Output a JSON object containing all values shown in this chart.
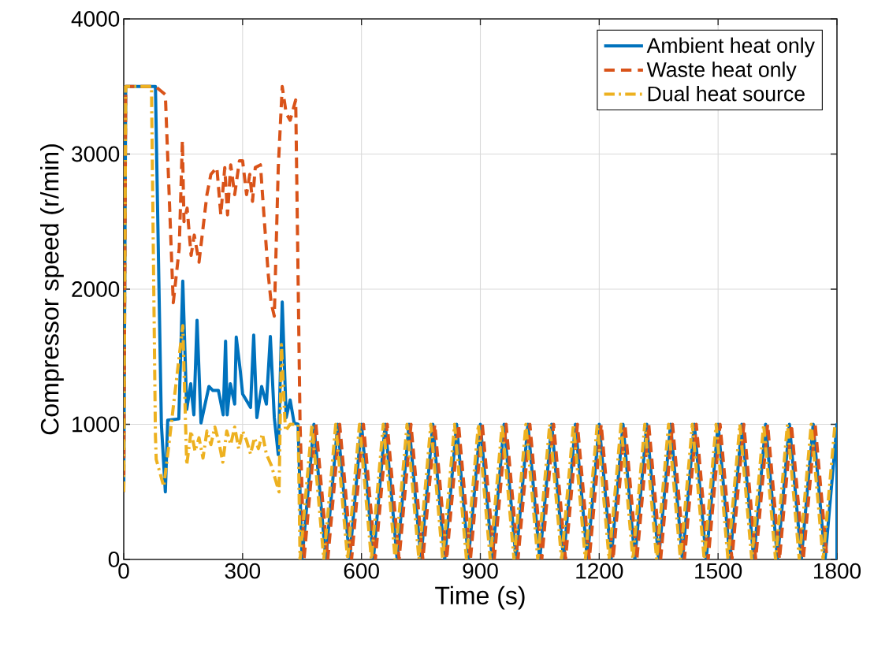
{
  "chart_data": {
    "type": "line",
    "xlabel": "Time (s)",
    "ylabel": "Compressor speed (r/min)",
    "xlim": [
      0,
      1800
    ],
    "xticks": [
      0,
      300,
      600,
      900,
      1200,
      1500,
      1800
    ],
    "ylim": [
      0,
      4000
    ],
    "yticks": [
      0,
      1000,
      2000,
      3000,
      4000
    ],
    "grid": true,
    "legend": "top right",
    "series": [
      {
        "name": "Ambient heat only",
        "color": "#0072bd",
        "line_style": "solid",
        "x": [
          0,
          5,
          80,
          95,
          105,
          111,
          139,
          149,
          159,
          169,
          177,
          185,
          195,
          215,
          225,
          239,
          251,
          257,
          261,
          269,
          280,
          284,
          294,
          300,
          320,
          328,
          336,
          348,
          360,
          370,
          380,
          390,
          400,
          410,
          420,
          430,
          440,
          450,
          480,
          510,
          540,
          570,
          600,
          630,
          660,
          690,
          720,
          750,
          780,
          810,
          840,
          870,
          900,
          930,
          960,
          990,
          1020,
          1050,
          1080,
          1110,
          1140,
          1170,
          1200,
          1230,
          1260,
          1290,
          1320,
          1350,
          1380,
          1410,
          1440,
          1470,
          1500,
          1530,
          1560,
          1590,
          1620,
          1650,
          1680,
          1710,
          1740,
          1770,
          1800,
          1800
        ],
        "values": [
          500,
          3500,
          3500,
          1000,
          500,
          1030,
          1040,
          2060,
          1110,
          1300,
          1070,
          1770,
          1010,
          1280,
          1250,
          1250,
          1070,
          1615,
          1070,
          1300,
          1150,
          1645,
          1400,
          1225,
          1125,
          1660,
          1050,
          1280,
          1150,
          1650,
          1050,
          775,
          1905,
          1050,
          1180,
          1010,
          1000,
          0,
          1000,
          0,
          1000,
          0,
          1000,
          0,
          1000,
          0,
          1000,
          0,
          1000,
          0,
          1000,
          0,
          1000,
          0,
          1000,
          0,
          1000,
          0,
          1000,
          0,
          1000,
          0,
          1000,
          0,
          1000,
          0,
          1000,
          0,
          1000,
          0,
          1000,
          0,
          1000,
          0,
          1000,
          0,
          1000,
          0,
          1000,
          0,
          1000,
          0,
          1000,
          0
        ]
      },
      {
        "name": "Waste heat only",
        "color": "#d95319",
        "line_style": "dashed",
        "x": [
          0,
          5,
          80,
          105,
          125,
          140,
          148,
          152,
          160,
          170,
          178,
          190,
          200,
          210,
          220,
          235,
          245,
          255,
          262,
          270,
          280,
          292,
          300,
          310,
          318,
          325,
          332,
          345,
          355,
          365,
          372,
          380,
          390,
          400,
          410,
          420,
          434,
          445,
          455,
          485,
          515,
          545,
          575,
          605,
          635,
          665,
          695,
          725,
          755,
          785,
          815,
          845,
          875,
          905,
          935,
          965,
          995,
          1025,
          1055,
          1085,
          1115,
          1145,
          1175,
          1205,
          1235,
          1265,
          1295,
          1325,
          1355,
          1385,
          1415,
          1445,
          1475,
          1505,
          1535,
          1565,
          1595,
          1625,
          1655,
          1685,
          1715,
          1745,
          1775
        ],
        "values": [
          500,
          3500,
          3500,
          3440,
          1900,
          2300,
          3100,
          2500,
          2600,
          2250,
          2400,
          2200,
          2450,
          2700,
          2850,
          2900,
          2550,
          2900,
          2550,
          2920,
          2700,
          2950,
          2950,
          2700,
          2850,
          2650,
          2900,
          2920,
          2500,
          2100,
          1900,
          1800,
          2900,
          3500,
          3300,
          3250,
          3400,
          1000,
          0,
          1000,
          0,
          1000,
          0,
          1000,
          0,
          1000,
          0,
          1000,
          0,
          1000,
          0,
          1000,
          0,
          1000,
          0,
          1000,
          0,
          1000,
          0,
          1000,
          0,
          1000,
          0,
          1000,
          0,
          1000,
          0,
          1000,
          0,
          1000,
          0,
          1000,
          0,
          1000,
          0,
          1000,
          0,
          1000,
          0,
          1000,
          0,
          1000,
          0
        ]
      },
      {
        "name": "Dual heat source",
        "color": "#edb120",
        "line_style": "dashdot",
        "x": [
          0,
          5,
          70,
          80,
          82,
          101,
          111,
          149,
          159,
          170,
          180,
          190,
          200,
          210,
          220,
          230,
          240,
          250,
          260,
          270,
          280,
          290,
          300,
          310,
          320,
          330,
          340,
          350,
          360,
          372,
          392,
          398,
          408,
          420,
          440,
          445,
          475,
          505,
          535,
          565,
          595,
          625,
          655,
          685,
          715,
          745,
          775,
          805,
          835,
          865,
          895,
          925,
          955,
          985,
          1015,
          1045,
          1075,
          1105,
          1135,
          1165,
          1195,
          1225,
          1255,
          1285,
          1315,
          1345,
          1375,
          1405,
          1435,
          1465,
          1495,
          1525,
          1555,
          1585,
          1615,
          1645,
          1675,
          1705,
          1735,
          1765,
          1795
        ],
        "values": [
          500,
          3500,
          3500,
          915,
          740,
          540,
          775,
          1730,
          700,
          950,
          800,
          900,
          750,
          950,
          850,
          980,
          870,
          720,
          950,
          850,
          980,
          820,
          950,
          880,
          780,
          900,
          820,
          930,
          780,
          700,
          500,
          1590,
          950,
          1000,
          1000,
          0,
          1000,
          0,
          1000,
          0,
          1000,
          0,
          1000,
          0,
          1000,
          0,
          1000,
          0,
          1000,
          0,
          1000,
          0,
          1000,
          0,
          1000,
          0,
          1000,
          0,
          1000,
          0,
          1000,
          0,
          1000,
          0,
          1000,
          0,
          1000,
          0,
          1000,
          0,
          1000,
          0,
          1000,
          0,
          1000,
          0,
          1000,
          0,
          1000,
          0,
          1000
        ]
      }
    ]
  }
}
